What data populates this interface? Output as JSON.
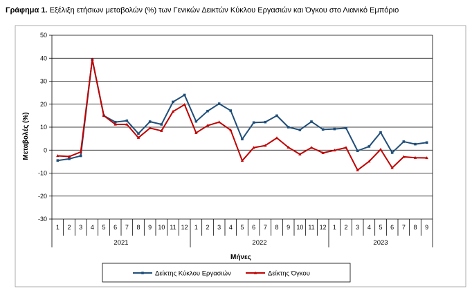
{
  "title": {
    "lead": "Γράφημα 1.",
    "text": "Εξέλιξη ετήσιων μεταβολών (%) των Γενικών Δεικτών Κύκλου Εργασιών και Όγκου στο Λιανικό Εμπόριο"
  },
  "chart_data": {
    "type": "line",
    "xlabel": "Μήνες",
    "ylabel": "Μεταβολές (%)",
    "ylim": [
      -30,
      50
    ],
    "yticks": [
      -30,
      -20,
      -10,
      0,
      10,
      20,
      30,
      40,
      50
    ],
    "grid": true,
    "legend_position": "bottom",
    "categories": [
      "1",
      "2",
      "3",
      "4",
      "5",
      "6",
      "7",
      "8",
      "9",
      "10",
      "11",
      "12",
      "1",
      "2",
      "3",
      "4",
      "5",
      "6",
      "7",
      "8",
      "9",
      "10",
      "11",
      "12",
      "1",
      "2",
      "3",
      "4",
      "5",
      "6",
      "7",
      "8",
      "9"
    ],
    "groups": [
      {
        "label": "2021",
        "count": 12
      },
      {
        "label": "2022",
        "count": 12
      },
      {
        "label": "2023",
        "count": 9
      }
    ],
    "series": [
      {
        "name": "Δείκτης Κύκλου Εργασιών",
        "color": "#1f4e79",
        "marker": "square",
        "values": [
          -4.5,
          -3.8,
          -2.5,
          39.5,
          15,
          12.2,
          12.8,
          7.2,
          12.4,
          11.2,
          21,
          24,
          12.5,
          17,
          20.2,
          17.2,
          4.8,
          12,
          12.2,
          15,
          10,
          8.8,
          12.4,
          9,
          9.2,
          9.6,
          -0.3,
          1.6,
          7.7,
          -1.1,
          3.7,
          2.6,
          3.3
        ]
      },
      {
        "name": "Δείκτης Όγκου",
        "color": "#c00000",
        "marker": "triangle",
        "values": [
          -2.5,
          -2.8,
          -0.8,
          39.5,
          15,
          11.2,
          11.2,
          5.4,
          9.6,
          8.4,
          16.8,
          19.8,
          7.5,
          10.7,
          12.2,
          8.7,
          -4.6,
          1.1,
          2,
          5.3,
          1.2,
          -1.8,
          1.1,
          -1.2,
          -0.1,
          1.1,
          -8.7,
          -4.9,
          0.3,
          -7.7,
          -2.9,
          -3.3,
          -3.4
        ]
      }
    ]
  }
}
